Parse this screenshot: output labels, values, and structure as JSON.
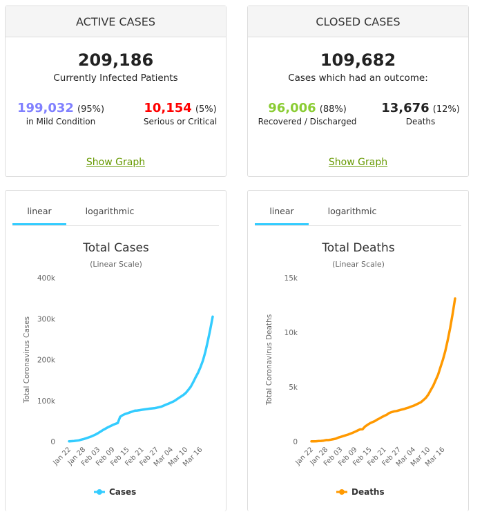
{
  "active_cases": {
    "header": "ACTIVE CASES",
    "total": "209,186",
    "total_label": "Currently Infected Patients",
    "mild": {
      "value": "199,032",
      "pct": "(95%)",
      "label": "in Mild Condition",
      "color": "#8080ff"
    },
    "serious": {
      "value": "10,154",
      "pct": "(5%)",
      "label": "Serious or Critical",
      "color": "#ff0000"
    },
    "link": "Show Graph"
  },
  "closed_cases": {
    "header": "CLOSED CASES",
    "total": "109,682",
    "total_label": "Cases which had an outcome:",
    "recovered": {
      "value": "96,006",
      "pct": "(88%)",
      "label": "Recovered / Discharged",
      "color": "#8acc33"
    },
    "deaths": {
      "value": "13,676",
      "pct": "(12%)",
      "label": "Deaths",
      "color": "#333333"
    },
    "link": "Show Graph"
  },
  "link_color": "#669900",
  "tabs": {
    "linear": "linear",
    "logarithmic": "logarithmic",
    "accent": "#33ccff"
  },
  "chart_data": [
    {
      "type": "line",
      "title": "Total Cases",
      "subtitle": "(Linear Scale)",
      "ylabel": "Total Coronavirus Cases",
      "xlabel": "",
      "ylim": [
        0,
        400000
      ],
      "yticks": [
        0,
        100000,
        200000,
        300000,
        400000
      ],
      "ytick_labels": [
        "0",
        "100k",
        "200k",
        "300k",
        "400k"
      ],
      "xtick_labels": [
        "Jan 22",
        "Jan 28",
        "Feb 03",
        "Feb 09",
        "Feb 15",
        "Feb 21",
        "Feb 27",
        "Mar 04",
        "Mar 10",
        "Mar 16"
      ],
      "grid": false,
      "legend": "bottom",
      "color": "#33ccff",
      "series": [
        {
          "name": "Cases",
          "x": [
            "Jan 22",
            "Jan 23",
            "Jan 24",
            "Jan 25",
            "Jan 26",
            "Jan 27",
            "Jan 28",
            "Jan 29",
            "Jan 30",
            "Jan 31",
            "Feb 01",
            "Feb 02",
            "Feb 03",
            "Feb 04",
            "Feb 05",
            "Feb 06",
            "Feb 07",
            "Feb 08",
            "Feb 09",
            "Feb 10",
            "Feb 11",
            "Feb 12",
            "Feb 13",
            "Feb 14",
            "Feb 15",
            "Feb 16",
            "Feb 17",
            "Feb 18",
            "Feb 19",
            "Feb 20",
            "Feb 21",
            "Feb 22",
            "Feb 23",
            "Feb 24",
            "Feb 25",
            "Feb 26",
            "Feb 27",
            "Feb 28",
            "Feb 29",
            "Mar 01",
            "Mar 02",
            "Mar 03",
            "Mar 04",
            "Mar 05",
            "Mar 06",
            "Mar 07",
            "Mar 08",
            "Mar 09",
            "Mar 10",
            "Mar 11",
            "Mar 12",
            "Mar 13",
            "Mar 14",
            "Mar 15",
            "Mar 16",
            "Mar 17",
            "Mar 18",
            "Mar 19",
            "Mar 20",
            "Mar 21"
          ],
          "values": [
            580,
            850,
            1300,
            2000,
            2900,
            4500,
            6100,
            8000,
            9900,
            12000,
            14600,
            17400,
            20700,
            24500,
            28300,
            31500,
            34900,
            37600,
            40600,
            43100,
            45200,
            60400,
            64500,
            67100,
            69100,
            71300,
            73300,
            75200,
            75700,
            76700,
            77700,
            78500,
            79400,
            80100,
            80800,
            81400,
            82500,
            83800,
            85400,
            88000,
            90400,
            92900,
            95500,
            98300,
            102000,
            106000,
            110000,
            114000,
            119000,
            126000,
            134000,
            145000,
            157000,
            168000,
            182000,
            198000,
            219000,
            245000,
            274000,
            305000
          ]
        }
      ]
    },
    {
      "type": "line",
      "title": "Total Deaths",
      "subtitle": "(Linear Scale)",
      "ylabel": "Total Coronavirus Deaths",
      "xlabel": "",
      "ylim": [
        0,
        15000
      ],
      "yticks": [
        0,
        5000,
        10000,
        15000
      ],
      "ytick_labels": [
        "0",
        "5k",
        "10k",
        "15k"
      ],
      "xtick_labels": [
        "Jan 22",
        "Jan 28",
        "Feb 03",
        "Feb 09",
        "Feb 15",
        "Feb 21",
        "Feb 27",
        "Mar 04",
        "Mar 10",
        "Mar 16"
      ],
      "grid": false,
      "legend": "bottom",
      "color": "#ff9900",
      "series": [
        {
          "name": "Deaths",
          "x": [
            "Jan 22",
            "Jan 23",
            "Jan 24",
            "Jan 25",
            "Jan 26",
            "Jan 27",
            "Jan 28",
            "Jan 29",
            "Jan 30",
            "Jan 31",
            "Feb 01",
            "Feb 02",
            "Feb 03",
            "Feb 04",
            "Feb 05",
            "Feb 06",
            "Feb 07",
            "Feb 08",
            "Feb 09",
            "Feb 10",
            "Feb 11",
            "Feb 12",
            "Feb 13",
            "Feb 14",
            "Feb 15",
            "Feb 16",
            "Feb 17",
            "Feb 18",
            "Feb 19",
            "Feb 20",
            "Feb 21",
            "Feb 22",
            "Feb 23",
            "Feb 24",
            "Feb 25",
            "Feb 26",
            "Feb 27",
            "Feb 28",
            "Feb 29",
            "Mar 01",
            "Mar 02",
            "Mar 03",
            "Mar 04",
            "Mar 05",
            "Mar 06",
            "Mar 07",
            "Mar 08",
            "Mar 09",
            "Mar 10",
            "Mar 11",
            "Mar 12",
            "Mar 13",
            "Mar 14",
            "Mar 15",
            "Mar 16",
            "Mar 17",
            "Mar 18",
            "Mar 19",
            "Mar 20",
            "Mar 21"
          ],
          "values": [
            17,
            18,
            26,
            42,
            56,
            82,
            131,
            133,
            171,
            213,
            259,
            362,
            426,
            492,
            564,
            634,
            719,
            806,
            906,
            1013,
            1113,
            1118,
            1371,
            1523,
            1666,
            1770,
            1868,
            2007,
            2122,
            2247,
            2360,
            2460,
            2618,
            2699,
            2763,
            2800,
            2858,
            2923,
            2977,
            3050,
            3117,
            3202,
            3285,
            3387,
            3494,
            3600,
            3800,
            4000,
            4300,
            4700,
            5100,
            5600,
            6100,
            6800,
            7500,
            8300,
            9300,
            10400,
            11700,
            13100
          ]
        }
      ]
    }
  ]
}
